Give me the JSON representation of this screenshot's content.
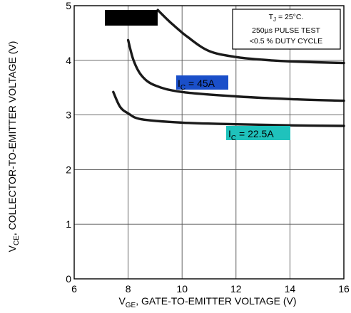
{
  "chart_data": {
    "type": "line",
    "title": "",
    "xlabel": {
      "main": "V",
      "sub": "GE",
      "rest": ", GATE-TO-EMITTER VOLTAGE (V)"
    },
    "ylabel": {
      "main": "V",
      "sub": "CE",
      "rest": ", COLLECTOR-TO-EMITTER VOLTAGE (V)"
    },
    "xlim": [
      6,
      16
    ],
    "ylim": [
      0,
      5
    ],
    "x_ticks": [
      6,
      8,
      10,
      12,
      14,
      16
    ],
    "y_ticks": [
      0,
      1,
      2,
      3,
      4,
      5
    ],
    "grid": true,
    "conditions": {
      "line1_main": "T",
      "line1_sub": "J",
      "line1_rest": " = 25°C.",
      "line2": "250µs PULSE TEST",
      "line3": "<0.5 % DUTY CYCLE"
    },
    "series": [
      {
        "label_main": "I",
        "label_sub": "C",
        "label_rest": " = 45A",
        "label_color": "#1a4fc9",
        "points": [
          [
            8.0,
            4.37
          ],
          [
            8.2,
            4.0
          ],
          [
            8.5,
            3.72
          ],
          [
            9.0,
            3.54
          ],
          [
            10.0,
            3.42
          ],
          [
            12.0,
            3.34
          ],
          [
            14.0,
            3.29
          ],
          [
            16.0,
            3.26
          ]
        ]
      },
      {
        "label_main": "I",
        "label_sub": "C",
        "label_rest": " = 22.5A",
        "label_color": "#1fc2bc",
        "points": [
          [
            7.45,
            3.42
          ],
          [
            7.7,
            3.15
          ],
          [
            8.0,
            3.03
          ],
          [
            8.5,
            2.92
          ],
          [
            10.0,
            2.86
          ],
          [
            12.0,
            2.83
          ],
          [
            14.0,
            2.81
          ],
          [
            16.0,
            2.8
          ]
        ]
      },
      {
        "label_main": "",
        "label_sub": "",
        "label_rest": "",
        "label_color": "#000000",
        "points": [
          [
            9.1,
            4.92
          ],
          [
            9.6,
            4.68
          ],
          [
            10.2,
            4.43
          ],
          [
            11.0,
            4.17
          ],
          [
            12.0,
            4.06
          ],
          [
            13.0,
            4.01
          ],
          [
            14.0,
            3.98
          ],
          [
            16.0,
            3.95
          ]
        ]
      }
    ]
  }
}
